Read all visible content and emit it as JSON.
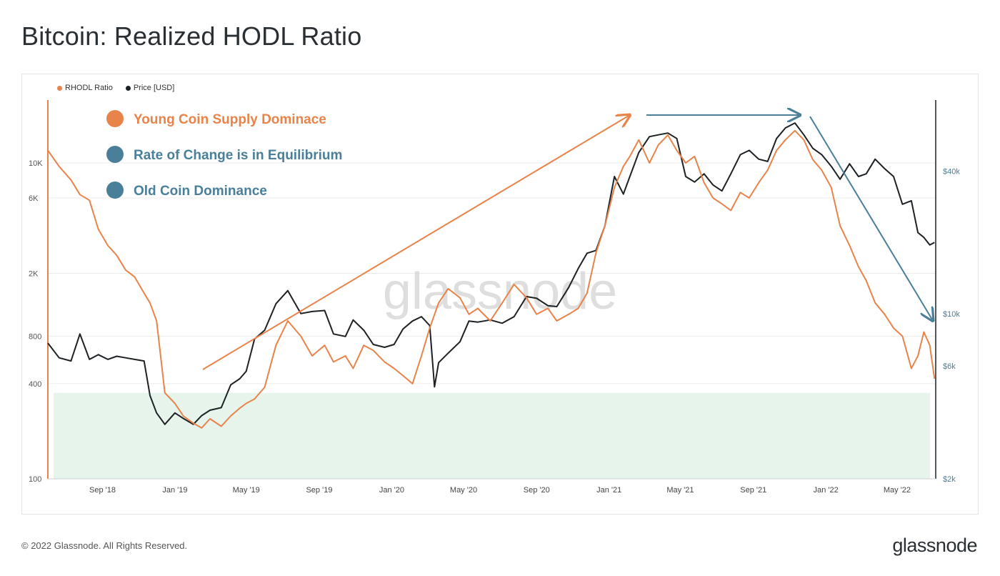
{
  "page": {
    "title": "Bitcoin: Realized HODL Ratio",
    "footer": "© 2022 Glassnode. All Rights Reserved.",
    "brand": "glassnode",
    "watermark": "glassnode"
  },
  "colors": {
    "rhodl": "#e8834a",
    "price": "#1d2124",
    "blue": "#4a7f99",
    "zone": "#e6f4ec",
    "grid": "#ebebeb"
  },
  "chart_data": {
    "type": "line",
    "legend": [
      {
        "name": "RHODL Ratio",
        "color": "#e8834a"
      },
      {
        "name": "Price [USD]",
        "color": "#1d2124"
      }
    ],
    "annotations": [
      {
        "label": "Young Coin Supply Dominace",
        "color": "#e8834a"
      },
      {
        "label": "Rate of Change is in Equilibrium",
        "color": "#4a7f99"
      },
      {
        "label": "Old Coin Dominance",
        "color": "#4a7f99"
      }
    ],
    "x_axis": {
      "ticks": [
        "Sep '18",
        "Jan '19",
        "May '19",
        "Sep '19",
        "Jan '20",
        "May '20",
        "Sep '20",
        "Jan '21",
        "May '21",
        "Sep '21",
        "Jan '22",
        "May '22"
      ],
      "range": [
        "2018-06-01",
        "2022-07-05"
      ]
    },
    "y_left": {
      "label": "RHODL Ratio",
      "scale": "log",
      "range": [
        100,
        25000
      ],
      "ticks": [
        {
          "v": 100,
          "t": "100"
        },
        {
          "v": 400,
          "t": "400"
        },
        {
          "v": 800,
          "t": "800"
        },
        {
          "v": 2000,
          "t": "2K"
        },
        {
          "v": 6000,
          "t": "6K"
        },
        {
          "v": 10000,
          "t": "10K"
        }
      ]
    },
    "y_right": {
      "label": "Price [USD]",
      "scale": "log",
      "range": [
        2000,
        80000
      ],
      "ticks": [
        {
          "v": 2000,
          "t": "$2k"
        },
        {
          "v": 6000,
          "t": "$6k"
        },
        {
          "v": 10000,
          "t": "$10k"
        },
        {
          "v": 40000,
          "t": "$40k"
        }
      ]
    },
    "green_zone": {
      "from": 100,
      "to": 350
    },
    "series": [
      {
        "name": "RHODL Ratio",
        "axis": "left",
        "x": [
          "2018-06-01",
          "2018-06-20",
          "2018-07-10",
          "2018-07-25",
          "2018-08-10",
          "2018-08-25",
          "2018-09-10",
          "2018-09-25",
          "2018-10-10",
          "2018-10-25",
          "2018-11-10",
          "2018-11-20",
          "2018-12-01",
          "2018-12-15",
          "2019-01-01",
          "2019-01-15",
          "2019-02-01",
          "2019-02-15",
          "2019-03-01",
          "2019-03-20",
          "2019-04-05",
          "2019-04-20",
          "2019-05-01",
          "2019-05-15",
          "2019-06-01",
          "2019-06-20",
          "2019-07-10",
          "2019-08-01",
          "2019-08-20",
          "2019-09-10",
          "2019-09-25",
          "2019-10-15",
          "2019-10-28",
          "2019-11-15",
          "2019-12-01",
          "2019-12-20",
          "2020-01-05",
          "2020-01-20",
          "2020-02-05",
          "2020-02-20",
          "2020-03-05",
          "2020-03-20",
          "2020-04-05",
          "2020-04-25",
          "2020-05-10",
          "2020-05-25",
          "2020-06-15",
          "2020-07-05",
          "2020-07-25",
          "2020-08-15",
          "2020-09-01",
          "2020-09-20",
          "2020-10-05",
          "2020-10-25",
          "2020-11-10",
          "2020-11-25",
          "2020-12-10",
          "2020-12-25",
          "2021-01-10",
          "2021-01-25",
          "2021-02-05",
          "2021-02-20",
          "2021-03-10",
          "2021-03-25",
          "2021-04-10",
          "2021-04-25",
          "2021-05-10",
          "2021-05-25",
          "2021-06-10",
          "2021-06-25",
          "2021-07-10",
          "2021-07-25",
          "2021-08-10",
          "2021-08-25",
          "2021-09-10",
          "2021-09-25",
          "2021-10-10",
          "2021-10-25",
          "2021-11-10",
          "2021-11-25",
          "2021-12-10",
          "2021-12-25",
          "2022-01-10",
          "2022-01-25",
          "2022-02-10",
          "2022-02-25",
          "2022-03-10",
          "2022-03-25",
          "2022-04-10",
          "2022-04-25",
          "2022-05-10",
          "2022-05-25",
          "2022-06-05",
          "2022-06-15",
          "2022-06-25",
          "2022-07-03"
        ],
        "values": [
          12000,
          9500,
          7800,
          6300,
          5800,
          3800,
          3000,
          2600,
          2100,
          1900,
          1500,
          1300,
          1000,
          350,
          300,
          250,
          225,
          210,
          240,
          215,
          250,
          280,
          300,
          320,
          380,
          700,
          1000,
          800,
          600,
          700,
          550,
          600,
          500,
          700,
          650,
          550,
          500,
          450,
          400,
          600,
          900,
          1300,
          1600,
          1400,
          1100,
          1200,
          1000,
          1300,
          1700,
          1400,
          1100,
          1200,
          1000,
          1100,
          1200,
          1500,
          2700,
          4000,
          7000,
          9500,
          11000,
          14000,
          10000,
          13000,
          15000,
          12000,
          10000,
          11000,
          7500,
          6000,
          5500,
          5000,
          6500,
          6000,
          7500,
          9000,
          12000,
          14000,
          16000,
          14000,
          10500,
          9000,
          7000,
          4000,
          3000,
          2200,
          1800,
          1300,
          1100,
          900,
          800,
          500,
          600,
          850,
          700,
          430
        ]
      },
      {
        "name": "Price [USD]",
        "axis": "right",
        "x": [
          "2018-06-01",
          "2018-06-20",
          "2018-07-10",
          "2018-07-25",
          "2018-08-10",
          "2018-08-25",
          "2018-09-10",
          "2018-09-25",
          "2018-10-10",
          "2018-10-25",
          "2018-11-10",
          "2018-11-20",
          "2018-12-01",
          "2018-12-15",
          "2019-01-01",
          "2019-01-15",
          "2019-02-01",
          "2019-02-15",
          "2019-03-01",
          "2019-03-20",
          "2019-04-05",
          "2019-04-20",
          "2019-05-01",
          "2019-05-15",
          "2019-06-01",
          "2019-06-20",
          "2019-07-10",
          "2019-08-01",
          "2019-08-20",
          "2019-09-10",
          "2019-09-25",
          "2019-10-15",
          "2019-10-28",
          "2019-11-15",
          "2019-12-01",
          "2019-12-20",
          "2020-01-05",
          "2020-01-20",
          "2020-02-05",
          "2020-02-20",
          "2020-03-05",
          "2020-03-13",
          "2020-03-20",
          "2020-04-05",
          "2020-04-25",
          "2020-05-10",
          "2020-05-25",
          "2020-06-15",
          "2020-07-05",
          "2020-07-25",
          "2020-08-15",
          "2020-09-01",
          "2020-09-20",
          "2020-10-05",
          "2020-10-25",
          "2020-11-10",
          "2020-11-25",
          "2020-12-10",
          "2020-12-25",
          "2021-01-10",
          "2021-01-25",
          "2021-02-05",
          "2021-02-20",
          "2021-03-10",
          "2021-03-25",
          "2021-04-10",
          "2021-04-25",
          "2021-05-10",
          "2021-05-25",
          "2021-06-10",
          "2021-06-25",
          "2021-07-10",
          "2021-07-25",
          "2021-08-10",
          "2021-08-25",
          "2021-09-10",
          "2021-09-25",
          "2021-10-10",
          "2021-10-25",
          "2021-11-10",
          "2021-11-25",
          "2021-12-10",
          "2021-12-25",
          "2022-01-10",
          "2022-01-25",
          "2022-02-10",
          "2022-02-25",
          "2022-03-10",
          "2022-03-25",
          "2022-04-10",
          "2022-04-25",
          "2022-05-10",
          "2022-05-25",
          "2022-06-05",
          "2022-06-15",
          "2022-06-25",
          "2022-07-03"
        ],
        "values": [
          7500,
          6500,
          6300,
          8200,
          6400,
          6700,
          6400,
          6600,
          6500,
          6400,
          6300,
          4500,
          3800,
          3400,
          3800,
          3600,
          3400,
          3700,
          3900,
          4000,
          5000,
          5300,
          5700,
          7800,
          8500,
          11000,
          12500,
          10000,
          10200,
          10300,
          8200,
          8000,
          9400,
          8500,
          7400,
          7200,
          7400,
          8600,
          9300,
          9700,
          8900,
          4900,
          6200,
          6800,
          7600,
          9300,
          9200,
          9400,
          9100,
          9700,
          11800,
          11600,
          10800,
          10700,
          12900,
          15500,
          18000,
          18500,
          23500,
          38000,
          32000,
          38000,
          48000,
          56000,
          57000,
          58000,
          55000,
          38000,
          36000,
          39000,
          35000,
          33000,
          39000,
          47000,
          49000,
          45000,
          44000,
          55000,
          61000,
          64000,
          57000,
          50000,
          47000,
          42000,
          37000,
          43000,
          38000,
          39000,
          45000,
          41000,
          38000,
          29000,
          30000,
          22000,
          21000,
          19500,
          20000
        ]
      }
    ]
  }
}
